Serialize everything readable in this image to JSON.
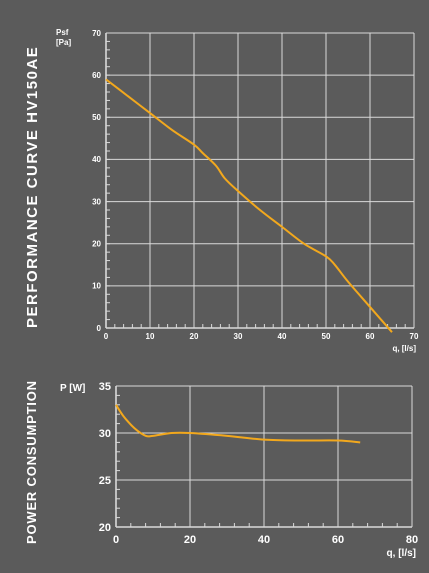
{
  "colors": {
    "background": "#5b5b5b",
    "grid": "#d9d9d9",
    "curve": "#f2a81d",
    "text": "#ffffff"
  },
  "chart_data": [
    {
      "type": "line",
      "title": "PERFORMANCE CURVE HV150AE",
      "ylabel_line1": "Psf",
      "ylabel_line2": "[Pa]",
      "xlabel": "q, [l/s]",
      "xlim": [
        0,
        70
      ],
      "ylim": [
        0,
        70
      ],
      "xticks": [
        0,
        10,
        20,
        30,
        40,
        50,
        60,
        70
      ],
      "yticks": [
        0,
        10,
        20,
        30,
        40,
        50,
        60,
        70
      ],
      "grid": true,
      "series": [
        {
          "x": [
            0,
            5,
            10,
            15,
            20,
            22,
            25,
            27,
            30,
            35,
            40,
            45,
            50,
            52,
            55,
            60,
            65
          ],
          "y": [
            59,
            55,
            51,
            47,
            43.5,
            41.5,
            38.5,
            35.5,
            32.5,
            28,
            24,
            20,
            17,
            15,
            11,
            5,
            -1
          ]
        }
      ]
    },
    {
      "type": "line",
      "title": "POWER CONSUMPTION",
      "ylabel": "P [W]",
      "xlabel": "q, [l/s]",
      "xlim": [
        0,
        80
      ],
      "ylim": [
        20,
        35
      ],
      "xticks": [
        0,
        20,
        40,
        60,
        80
      ],
      "yticks": [
        20,
        25,
        30,
        35
      ],
      "grid": true,
      "series": [
        {
          "x": [
            0,
            2,
            5,
            8,
            10,
            15,
            20,
            30,
            40,
            50,
            60,
            66
          ],
          "y": [
            33,
            31.8,
            30.5,
            29.7,
            29.7,
            30.0,
            30.0,
            29.7,
            29.3,
            29.2,
            29.2,
            29.0
          ]
        }
      ]
    }
  ]
}
